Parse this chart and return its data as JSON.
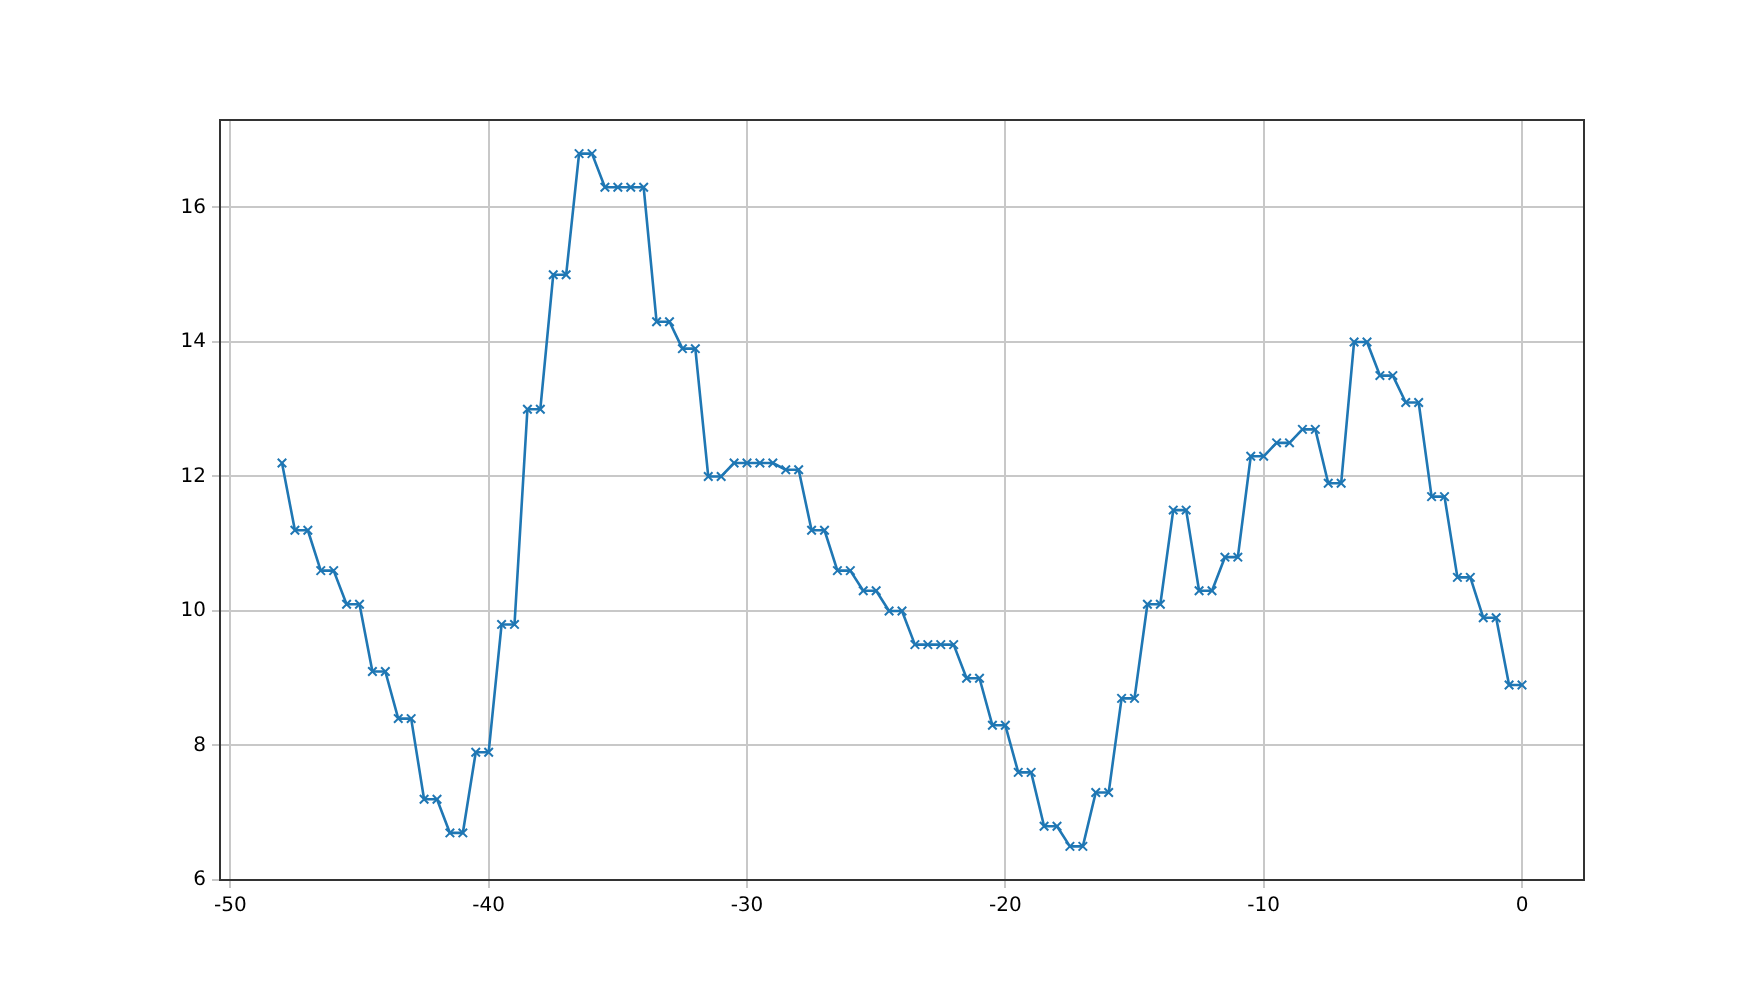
{
  "chart_data": {
    "type": "line",
    "marker": "cross",
    "line_style": "solid",
    "grid": true,
    "legend": false,
    "xlim": [
      -50.4,
      2.4
    ],
    "xticks": [
      -50,
      -40,
      -30,
      -20,
      -10,
      0
    ],
    "ylim": [
      6,
      17.3
    ],
    "yticks": [
      6,
      8,
      10,
      12,
      14,
      16
    ],
    "x": [
      -48,
      -47.5,
      -47,
      -46.5,
      -46,
      -45.5,
      -45,
      -44.5,
      -44,
      -43.5,
      -43,
      -42.5,
      -42,
      -41.5,
      -41,
      -40.5,
      -40,
      -39.5,
      -39,
      -38.5,
      -38,
      -37.5,
      -37,
      -36.5,
      -36,
      -35.5,
      -35,
      -34.5,
      -34,
      -33.5,
      -33,
      -32.5,
      -32,
      -31.5,
      -31,
      -30.5,
      -30,
      -29.5,
      -29,
      -28.5,
      -28,
      -27.5,
      -27,
      -26.5,
      -26,
      -25.5,
      -25,
      -24.5,
      -24,
      -23.5,
      -23,
      -22.5,
      -22,
      -21.5,
      -21,
      -20.5,
      -20,
      -19.5,
      -19,
      -18.5,
      -18,
      -17.5,
      -17,
      -16.5,
      -16,
      -15.5,
      -15,
      -14.5,
      -14,
      -13.5,
      -13,
      -12.5,
      -12,
      -11.5,
      -11,
      -10.5,
      -10,
      -9.5,
      -9,
      -8.5,
      -8,
      -7.5,
      -7,
      -6.5,
      -6,
      -5.5,
      -5,
      -4.5,
      -4,
      -3.5,
      -3,
      -2.5,
      -2,
      -1.5,
      -1,
      -0.5,
      0
    ],
    "series": [
      {
        "color": "#1f77b4",
        "values": [
          12.2,
          11.2,
          11.2,
          10.6,
          10.6,
          10.1,
          10.1,
          9.1,
          9.1,
          8.4,
          8.4,
          7.2,
          7.2,
          6.7,
          6.7,
          7.9,
          7.9,
          9.8,
          9.8,
          13.0,
          13.0,
          15.0,
          15.0,
          16.8,
          16.8,
          16.3,
          16.3,
          16.3,
          16.3,
          14.3,
          14.3,
          13.9,
          13.9,
          12.0,
          12.0,
          12.2,
          12.2,
          12.2,
          12.2,
          12.1,
          12.1,
          11.2,
          11.2,
          10.6,
          10.6,
          10.3,
          10.3,
          10.0,
          10.0,
          9.5,
          9.5,
          9.5,
          9.5,
          9.0,
          9.0,
          8.3,
          8.3,
          7.6,
          7.6,
          6.8,
          6.8,
          6.5,
          6.5,
          7.3,
          7.3,
          8.7,
          8.7,
          10.1,
          10.1,
          11.5,
          11.5,
          10.3,
          10.3,
          10.8,
          10.8,
          12.3,
          12.3,
          12.5,
          12.5,
          12.7,
          12.7,
          11.9,
          11.9,
          14.0,
          14.0,
          13.5,
          13.5,
          13.1,
          13.1,
          11.7,
          11.7,
          10.5,
          10.5,
          9.9,
          9.9,
          8.9,
          8.9
        ]
      }
    ]
  }
}
